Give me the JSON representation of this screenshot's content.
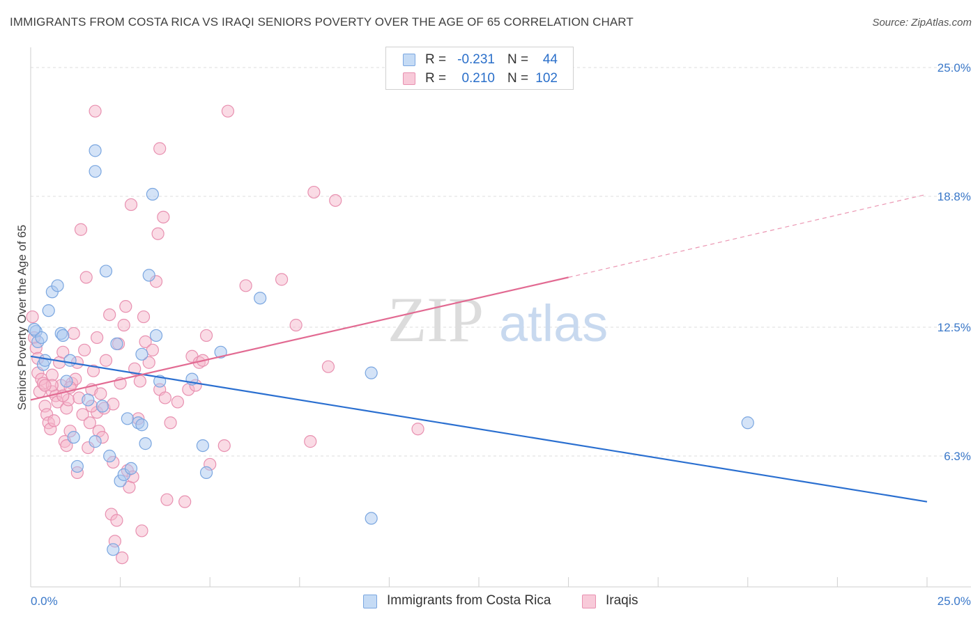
{
  "header": {
    "title": "IMMIGRANTS FROM COSTA RICA VS IRAQI SENIORS POVERTY OVER THE AGE OF 65 CORRELATION CHART",
    "source": "Source: ZipAtlas.com"
  },
  "legend": {
    "series1": {
      "r_label": "R =",
      "r_value": "-0.231",
      "n_label": "N =",
      "n_value": "44"
    },
    "series2": {
      "r_label": "R =",
      "r_value": "0.210",
      "n_label": "N =",
      "n_value": "102"
    }
  },
  "bottom_legend": {
    "series1": "Immigrants from Costa Rica",
    "series2": "Iraqis"
  },
  "watermark": {
    "zip": "ZIP",
    "atlas": "atlas"
  },
  "colors": {
    "blue_fill": "#aac8f0",
    "blue_stroke": "#7aa6e0",
    "blue_line": "#2a6fd0",
    "pink_fill": "#f5b8cc",
    "pink_stroke": "#e890b0",
    "pink_line": "#e26a92",
    "axis_label": "#3a78c9",
    "grid": "#dddddd"
  },
  "chart_data": {
    "type": "scatter",
    "title": "IMMIGRANTS FROM COSTA RICA VS IRAQI SENIORS POVERTY OVER THE AGE OF 65 CORRELATION CHART",
    "xlabel": "",
    "ylabel": "Seniors Poverty Over the Age of 65",
    "xlim": [
      0,
      25
    ],
    "ylim": [
      0,
      25
    ],
    "x_tick_labels": [
      "0.0%",
      "25.0%"
    ],
    "y_ticks": [
      6.3,
      12.5,
      18.8,
      25.0
    ],
    "y_tick_labels": [
      "6.3%",
      "12.5%",
      "18.8%",
      "25.0%"
    ],
    "series": [
      {
        "name": "Immigrants from Costa Rica",
        "color": "blue",
        "R": -0.231,
        "N": 44,
        "trend": {
          "x0": 0,
          "y0": 11.1,
          "x1": 25,
          "y1": 4.1
        },
        "points": [
          [
            0.15,
            12.3
          ],
          [
            0.2,
            11.8
          ],
          [
            0.3,
            12.0
          ],
          [
            0.35,
            10.7
          ],
          [
            0.4,
            10.9
          ],
          [
            0.5,
            13.3
          ],
          [
            0.6,
            14.2
          ],
          [
            0.75,
            14.5
          ],
          [
            0.85,
            12.2
          ],
          [
            0.9,
            12.1
          ],
          [
            1.0,
            9.9
          ],
          [
            1.1,
            10.9
          ],
          [
            1.2,
            7.2
          ],
          [
            1.3,
            5.8
          ],
          [
            1.6,
            9.0
          ],
          [
            1.8,
            21.0
          ],
          [
            1.8,
            20.0
          ],
          [
            1.8,
            7.0
          ],
          [
            2.0,
            8.7
          ],
          [
            2.1,
            15.2
          ],
          [
            2.2,
            6.3
          ],
          [
            2.3,
            1.8
          ],
          [
            2.4,
            11.7
          ],
          [
            2.5,
            5.1
          ],
          [
            2.6,
            5.4
          ],
          [
            2.7,
            8.1
          ],
          [
            2.8,
            5.7
          ],
          [
            3.0,
            7.9
          ],
          [
            3.1,
            7.8
          ],
          [
            3.1,
            11.2
          ],
          [
            3.2,
            6.9
          ],
          [
            3.3,
            15.0
          ],
          [
            3.4,
            18.9
          ],
          [
            3.5,
            12.1
          ],
          [
            3.6,
            9.9
          ],
          [
            4.5,
            10.0
          ],
          [
            4.8,
            6.8
          ],
          [
            4.9,
            5.5
          ],
          [
            5.3,
            11.3
          ],
          [
            6.4,
            13.9
          ],
          [
            9.5,
            10.3
          ],
          [
            9.5,
            3.3
          ],
          [
            20.0,
            7.9
          ],
          [
            0.1,
            12.4
          ]
        ]
      },
      {
        "name": "Iraqis",
        "color": "pink",
        "R": 0.21,
        "N": 102,
        "trend": {
          "x0": 0,
          "y0": 9.0,
          "x1": 15.0,
          "y1": 14.9,
          "x_dash_end": 25,
          "y_dash_end": 18.9
        },
        "points": [
          [
            0.05,
            13.0
          ],
          [
            0.1,
            12.0
          ],
          [
            0.15,
            11.5
          ],
          [
            0.2,
            10.3
          ],
          [
            0.2,
            11.0
          ],
          [
            0.25,
            9.4
          ],
          [
            0.3,
            10.0
          ],
          [
            0.35,
            9.8
          ],
          [
            0.4,
            8.7
          ],
          [
            0.45,
            8.3
          ],
          [
            0.5,
            7.9
          ],
          [
            0.55,
            7.6
          ],
          [
            0.6,
            9.4
          ],
          [
            0.6,
            10.2
          ],
          [
            0.65,
            8.0
          ],
          [
            0.7,
            9.2
          ],
          [
            0.75,
            8.9
          ],
          [
            0.8,
            10.8
          ],
          [
            0.85,
            9.7
          ],
          [
            0.9,
            11.3
          ],
          [
            0.95,
            7.0
          ],
          [
            1.0,
            8.6
          ],
          [
            1.0,
            6.8
          ],
          [
            1.05,
            9.0
          ],
          [
            1.1,
            7.5
          ],
          [
            1.15,
            9.8
          ],
          [
            1.2,
            12.2
          ],
          [
            1.25,
            10.0
          ],
          [
            1.3,
            5.5
          ],
          [
            1.35,
            9.1
          ],
          [
            1.4,
            17.2
          ],
          [
            1.45,
            8.3
          ],
          [
            1.5,
            11.4
          ],
          [
            1.55,
            14.9
          ],
          [
            1.6,
            6.7
          ],
          [
            1.65,
            7.9
          ],
          [
            1.7,
            9.5
          ],
          [
            1.75,
            10.4
          ],
          [
            1.8,
            22.9
          ],
          [
            1.85,
            8.4
          ],
          [
            1.9,
            7.5
          ],
          [
            1.95,
            9.3
          ],
          [
            2.0,
            7.2
          ],
          [
            2.05,
            8.6
          ],
          [
            2.1,
            10.9
          ],
          [
            2.2,
            13.1
          ],
          [
            2.25,
            3.5
          ],
          [
            2.3,
            6.0
          ],
          [
            2.35,
            2.2
          ],
          [
            2.4,
            3.2
          ],
          [
            2.45,
            11.7
          ],
          [
            2.5,
            9.8
          ],
          [
            2.55,
            1.4
          ],
          [
            2.6,
            12.6
          ],
          [
            2.65,
            13.5
          ],
          [
            2.7,
            5.6
          ],
          [
            2.75,
            4.8
          ],
          [
            2.8,
            18.4
          ],
          [
            2.85,
            5.3
          ],
          [
            2.9,
            10.5
          ],
          [
            3.0,
            8.1
          ],
          [
            3.05,
            9.9
          ],
          [
            3.1,
            2.7
          ],
          [
            3.15,
            13.0
          ],
          [
            3.2,
            11.8
          ],
          [
            3.3,
            10.8
          ],
          [
            3.4,
            11.4
          ],
          [
            3.5,
            14.7
          ],
          [
            3.55,
            17.0
          ],
          [
            3.6,
            21.1
          ],
          [
            3.6,
            9.5
          ],
          [
            3.7,
            17.8
          ],
          [
            3.75,
            9.1
          ],
          [
            3.8,
            4.2
          ],
          [
            4.1,
            8.9
          ],
          [
            4.3,
            4.1
          ],
          [
            4.4,
            9.5
          ],
          [
            4.5,
            11.1
          ],
          [
            4.6,
            9.7
          ],
          [
            4.7,
            10.8
          ],
          [
            4.8,
            10.9
          ],
          [
            4.9,
            12.1
          ],
          [
            5.0,
            5.9
          ],
          [
            5.4,
            6.8
          ],
          [
            5.5,
            22.9
          ],
          [
            6.0,
            14.5
          ],
          [
            7.0,
            14.8
          ],
          [
            7.4,
            12.6
          ],
          [
            7.8,
            7.0
          ],
          [
            7.9,
            19.0
          ],
          [
            8.3,
            10.6
          ],
          [
            8.5,
            18.6
          ],
          [
            10.8,
            7.6
          ],
          [
            1.1,
            9.6
          ],
          [
            1.7,
            8.7
          ],
          [
            0.9,
            9.2
          ],
          [
            0.6,
            9.7
          ],
          [
            2.3,
            8.8
          ],
          [
            3.9,
            7.9
          ],
          [
            1.3,
            10.8
          ],
          [
            0.4,
            9.7
          ],
          [
            1.85,
            12.0
          ]
        ]
      }
    ]
  }
}
